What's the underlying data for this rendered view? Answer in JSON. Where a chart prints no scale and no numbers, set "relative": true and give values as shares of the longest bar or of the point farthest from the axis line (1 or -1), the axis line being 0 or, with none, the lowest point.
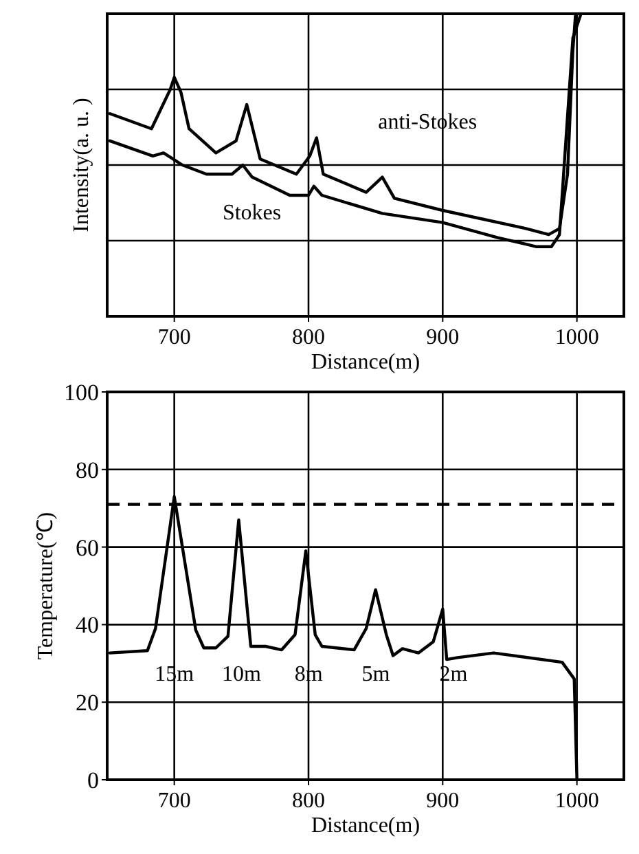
{
  "chart_data": [
    {
      "type": "line",
      "xlabel": "Distance(m)",
      "ylabel": "Intensity(a. u. )",
      "relative": true,
      "xlim": [
        650,
        1035
      ],
      "xticks": [
        700,
        800,
        900,
        1000
      ],
      "grid": true,
      "series": [
        {
          "name": "anti-Stokes",
          "color": "#000000",
          "x": [
            652,
            683,
            697,
            700,
            705,
            711,
            731,
            746,
            754,
            764,
            791,
            801,
            806,
            811,
            843,
            855,
            864,
            900,
            962,
            979,
            987,
            993,
            997,
            999
          ],
          "values": [
            0.67,
            0.62,
            0.75,
            0.79,
            0.74,
            0.62,
            0.54,
            0.58,
            0.7,
            0.52,
            0.47,
            0.53,
            0.59,
            0.47,
            0.41,
            0.46,
            0.39,
            0.35,
            0.29,
            0.27,
            0.29,
            0.47,
            0.88,
            1.0
          ]
        },
        {
          "name": "Stokes",
          "color": "#000000",
          "x": [
            652,
            684,
            692,
            706,
            724,
            743,
            751,
            758,
            786,
            800,
            804,
            810,
            855,
            900,
            941,
            970,
            981,
            987,
            997,
            1003
          ],
          "values": [
            0.58,
            0.53,
            0.54,
            0.5,
            0.47,
            0.47,
            0.5,
            0.46,
            0.4,
            0.4,
            0.43,
            0.4,
            0.34,
            0.31,
            0.26,
            0.23,
            0.23,
            0.27,
            0.92,
            1.0
          ]
        }
      ]
    },
    {
      "type": "line",
      "xlabel": "Distance(m)",
      "ylabel": "Temperature(℃)",
      "xlim": [
        650,
        1035
      ],
      "xticks": [
        700,
        800,
        900,
        1000
      ],
      "ylim": [
        0,
        100
      ],
      "yticks": [
        0,
        20,
        40,
        60,
        80,
        100
      ],
      "grid": true,
      "color": "#000000",
      "x": [
        652,
        680,
        686,
        700,
        716,
        722,
        731,
        740,
        748,
        757,
        768,
        780,
        790,
        798,
        805,
        810,
        834,
        843,
        850,
        858,
        863,
        870,
        882,
        893,
        900,
        903,
        911,
        938,
        989,
        998,
        1000
      ],
      "values": [
        32.7,
        33.3,
        39,
        73,
        38.6,
        34,
        34,
        37,
        67,
        34.4,
        34.4,
        33.5,
        37.4,
        59,
        37.4,
        34.4,
        33.5,
        39,
        49,
        37.4,
        32,
        33.8,
        32.7,
        35.6,
        44,
        31,
        31.5,
        32.7,
        30.3,
        26,
        0
      ],
      "ref_lines": [
        {
          "axis": "y",
          "value": 71,
          "line_style": "dashed"
        }
      ],
      "annotations": [
        "15m",
        "10m",
        "8m",
        "5m",
        "2m"
      ]
    }
  ]
}
